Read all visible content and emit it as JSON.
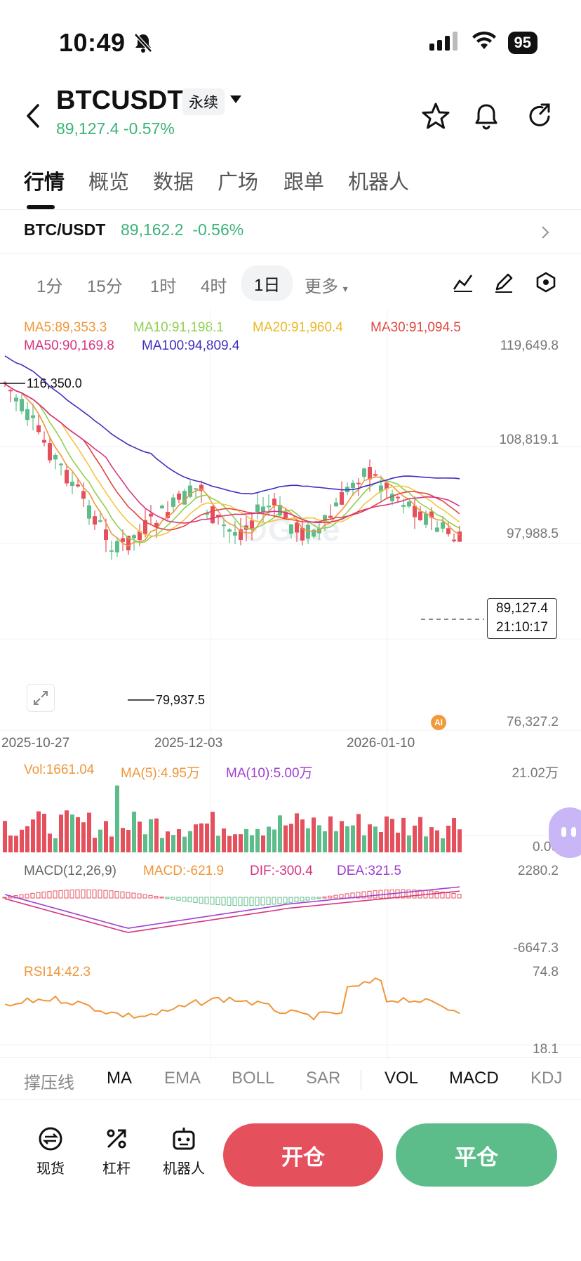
{
  "status_bar": {
    "time": "10:49",
    "battery": "95"
  },
  "header": {
    "symbol": "BTCUSDT",
    "contract_type": "永续",
    "price_line": "89,127.4 -0.57%"
  },
  "tabs": [
    {
      "label": "行情",
      "active": true
    },
    {
      "label": "概览",
      "active": false
    },
    {
      "label": "数据",
      "active": false
    },
    {
      "label": "广场",
      "active": false
    },
    {
      "label": "跟单",
      "active": false
    },
    {
      "label": "机器人",
      "active": false
    }
  ],
  "ticker": {
    "pair": "BTC/USDT",
    "price": "89,162.2",
    "change": "-0.56%"
  },
  "intervals": {
    "i1": "1分",
    "i2": "15分",
    "i3": "1时",
    "i4": "4时",
    "i5": "1日",
    "more": "更多"
  },
  "ma_legend": {
    "ma5": "MA5:89,353.3",
    "ma10": "MA10:91,198.1",
    "ma20": "MA20:91,960.4",
    "ma30": "MA30:91,094.5",
    "ma50": "MA50:90,169.8",
    "ma100": "MA100:94,809.4"
  },
  "price_axis": {
    "t1": "119,649.8",
    "t2": "108,819.1",
    "t3": "97,988.5",
    "t4": "76,327.2"
  },
  "annotations": {
    "high": "116,350.0",
    "low": "79,937.5"
  },
  "current_price": {
    "price": "89,127.4",
    "countdown": "21:10:17"
  },
  "dates": {
    "d1": "2025-10-27",
    "d2": "2025-12-03",
    "d3": "2026-01-10"
  },
  "ai_badge": "AI",
  "volume": {
    "vol": "Vol:1661.04",
    "ma5": "MA(5):4.95万",
    "ma10": "MA(10):5.00万",
    "axis_top": "21.02万",
    "axis_bottom": "0.00"
  },
  "macd": {
    "params": "MACD(12,26,9)",
    "macd": "MACD:-621.9",
    "dif": "DIF:-300.4",
    "dea": "DEA:321.5",
    "axis_top": "2280.2",
    "axis_bottom": "-6647.3"
  },
  "rsi": {
    "label": "RSI14:42.3",
    "axis_top": "74.8",
    "axis_bottom": "18.1"
  },
  "indicator_tabs": {
    "b1": "撑压线",
    "b2": "MA",
    "b3": "EMA",
    "b4": "BOLL",
    "b5": "SAR",
    "b6": "VOL",
    "b7": "MACD",
    "b8": "KDJ"
  },
  "actions": {
    "spot": "现货",
    "leverage": "杠杆",
    "bot": "机器人",
    "open": "开仓",
    "close": "平仓"
  },
  "colors": {
    "up": "#e5505d",
    "down": "#5cbd8a",
    "ma5": "#f0963a",
    "ma10": "#8fd14f",
    "ma20": "#f4c542",
    "ma30": "#e0463e",
    "ma50": "#d6357f",
    "ma100": "#3d2fc0"
  }
}
